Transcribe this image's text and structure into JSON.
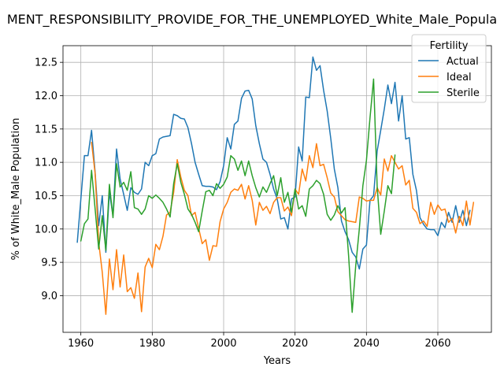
{
  "chart_data": {
    "type": "line",
    "title": "MENT_RESPONSIBILITY_PROVIDE_FOR_THE_UNEMPLOYED_White_Male_Popula",
    "xlabel": "Years",
    "ylabel": "% of White_Male Population",
    "xlim": [
      1955,
      2075
    ],
    "ylim": [
      8.45,
      12.75
    ],
    "xticks": [
      1960,
      1980,
      2000,
      2020,
      2040,
      2060
    ],
    "yticks": [
      9.0,
      9.5,
      10.0,
      10.5,
      11.0,
      11.5,
      12.0,
      12.5
    ],
    "xtick_labels": [
      "1960",
      "1980",
      "2000",
      "2020",
      "2040",
      "2060"
    ],
    "ytick_labels": [
      "9.0",
      "9.5",
      "10.0",
      "10.5",
      "11.0",
      "11.5",
      "12.0",
      "12.5"
    ],
    "grid": true,
    "legend": {
      "title": "Fertility",
      "position": "top-right"
    },
    "x": [
      1959,
      1960,
      1961,
      1962,
      1963,
      1964,
      1965,
      1966,
      1967,
      1968,
      1969,
      1970,
      1971,
      1972,
      1973,
      1974,
      1975,
      1976,
      1977,
      1978,
      1979,
      1980,
      1981,
      1982,
      1983,
      1984,
      1985,
      1986,
      1987,
      1988,
      1989,
      1990,
      1991,
      1992,
      1993,
      1994,
      1995,
      1996,
      1997,
      1998,
      1999,
      2000,
      2001,
      2002,
      2003,
      2004,
      2005,
      2006,
      2007,
      2008,
      2009,
      2010,
      2011,
      2012,
      2013,
      2014,
      2015,
      2016,
      2017,
      2018,
      2019,
      2020,
      2021,
      2022,
      2023,
      2024,
      2025,
      2026,
      2027,
      2028,
      2029,
      2030,
      2031,
      2032,
      2033,
      2034,
      2035,
      2036,
      2037,
      2038,
      2039,
      2040,
      2041,
      2042,
      2043,
      2044,
      2045,
      2046,
      2047,
      2048,
      2049,
      2050,
      2051,
      2052,
      2053,
      2054,
      2055,
      2056,
      2057,
      2058,
      2059,
      2060,
      2061,
      2062,
      2063,
      2064,
      2065,
      2066,
      2067,
      2068,
      2069,
      2070
    ],
    "series": [
      {
        "name": "Actual",
        "color": "#1f77b4",
        "values": [
          9.8,
          10.45,
          11.1,
          11.1,
          11.48,
          10.85,
          10.05,
          10.5,
          9.65,
          10.55,
          10.2,
          11.2,
          10.75,
          10.52,
          10.28,
          10.62,
          10.55,
          10.52,
          10.6,
          11.0,
          10.95,
          11.1,
          11.13,
          11.35,
          11.38,
          11.39,
          11.4,
          11.72,
          11.7,
          11.66,
          11.65,
          11.52,
          11.28,
          11.0,
          10.82,
          10.65,
          10.64,
          10.64,
          10.63,
          10.59,
          10.71,
          10.95,
          11.37,
          11.2,
          11.57,
          11.62,
          11.96,
          12.07,
          12.08,
          11.95,
          11.55,
          11.28,
          11.05,
          11.0,
          10.82,
          10.6,
          10.45,
          10.15,
          10.17,
          10.0,
          10.45,
          10.48,
          11.23,
          11.02,
          11.98,
          11.97,
          12.58,
          12.38,
          12.45,
          12.08,
          11.77,
          11.36,
          10.9,
          10.62,
          10.12,
          9.96,
          9.84,
          9.65,
          9.58,
          9.4,
          9.7,
          9.76,
          10.43,
          10.5,
          11.17,
          11.48,
          11.8,
          12.16,
          11.88,
          12.2,
          11.62,
          12.0,
          11.35,
          11.37,
          10.82,
          10.58,
          10.17,
          10.07,
          10.0,
          9.99,
          9.99,
          9.9,
          10.1,
          10.02,
          10.25,
          10.1,
          10.35,
          10.1,
          10.28,
          10.05,
          10.28,
          null
        ]
      },
      {
        "name": "Ideal",
        "color": "#ff7f0e",
        "values": [
          null,
          null,
          null,
          null,
          11.3,
          10.83,
          9.8,
          9.35,
          8.72,
          9.55,
          9.09,
          9.69,
          9.13,
          9.61,
          9.06,
          9.12,
          8.96,
          9.34,
          8.76,
          9.43,
          9.56,
          9.42,
          9.77,
          9.69,
          9.89,
          10.21,
          10.25,
          10.55,
          11.04,
          10.78,
          10.58,
          10.5,
          10.2,
          10.25,
          10.01,
          9.78,
          9.84,
          9.53,
          9.75,
          9.74,
          10.11,
          10.3,
          10.4,
          10.55,
          10.6,
          10.58,
          10.67,
          10.45,
          10.65,
          10.43,
          10.06,
          10.4,
          10.28,
          10.34,
          10.23,
          10.4,
          10.47,
          10.47,
          10.27,
          10.33,
          10.2,
          10.6,
          10.52,
          10.9,
          10.72,
          11.1,
          10.92,
          11.28,
          10.95,
          10.97,
          10.77,
          10.54,
          10.48,
          10.26,
          10.2,
          10.14,
          10.12,
          10.11,
          10.1,
          10.48,
          10.46,
          10.42,
          10.43,
          10.43,
          10.62,
          10.51,
          11.05,
          10.87,
          11.1,
          11.0,
          10.9,
          10.95,
          10.66,
          10.73,
          10.31,
          10.25,
          10.08,
          10.12,
          10.04,
          10.4,
          10.22,
          10.36,
          10.28,
          10.3,
          10.1,
          10.16,
          9.94,
          10.19,
          10.05,
          10.42,
          10.06,
          10.4
        ]
      },
      {
        "name": "Sterile",
        "color": "#2ca02c",
        "values": [
          null,
          9.82,
          10.08,
          10.15,
          10.88,
          10.3,
          9.7,
          10.2,
          9.68,
          10.67,
          10.17,
          10.98,
          10.63,
          10.7,
          10.58,
          10.86,
          10.32,
          10.3,
          10.22,
          10.3,
          10.5,
          10.46,
          10.51,
          10.46,
          10.4,
          10.3,
          10.18,
          10.68,
          10.98,
          10.7,
          10.52,
          10.3,
          10.22,
          10.1,
          9.96,
          10.27,
          10.56,
          10.58,
          10.5,
          10.68,
          10.61,
          10.67,
          10.78,
          11.1,
          11.05,
          10.88,
          11.02,
          10.8,
          11.02,
          10.8,
          10.62,
          10.48,
          10.63,
          10.55,
          10.68,
          10.8,
          10.5,
          10.77,
          10.4,
          10.55,
          10.25,
          10.6,
          10.3,
          10.35,
          10.19,
          10.6,
          10.65,
          10.73,
          10.68,
          10.52,
          10.22,
          10.13,
          10.21,
          10.35,
          10.24,
          10.32,
          9.6,
          8.75,
          9.45,
          10.0,
          10.65,
          11.03,
          11.67,
          12.25,
          10.64,
          9.92,
          10.27,
          10.65,
          10.53,
          11.11,
          null,
          null,
          null,
          null,
          null,
          null,
          null,
          null,
          null,
          null,
          null,
          null,
          null,
          null,
          null,
          null,
          null,
          null,
          null,
          null,
          null,
          null
        ]
      }
    ]
  }
}
